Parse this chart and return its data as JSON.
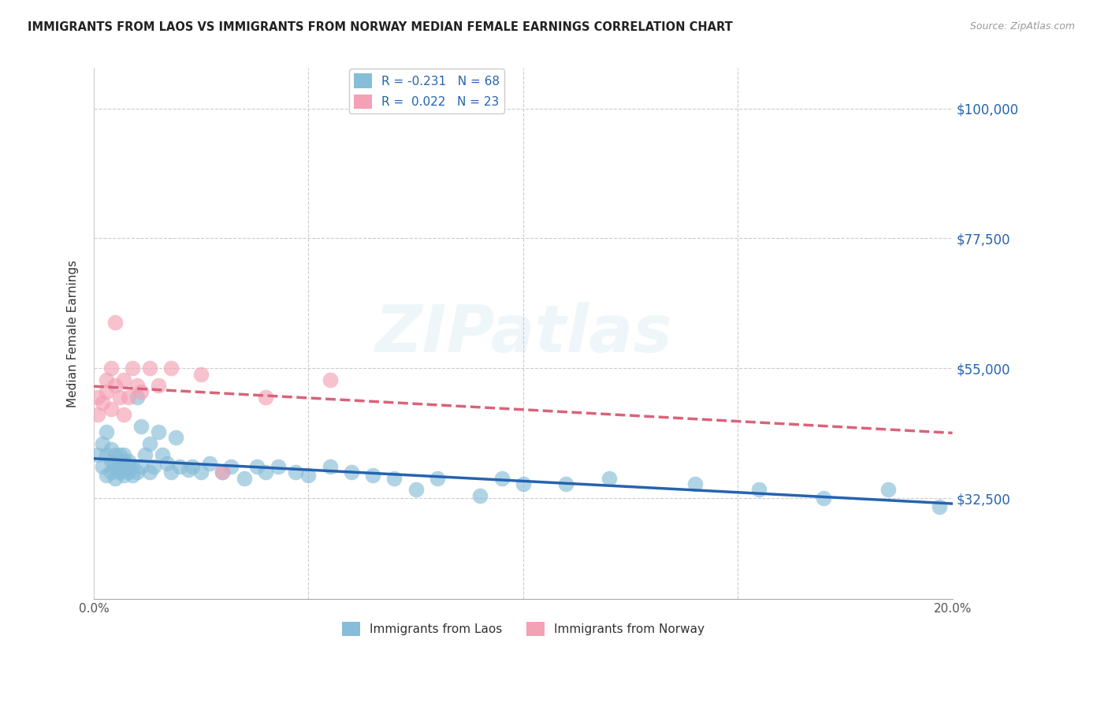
{
  "title": "IMMIGRANTS FROM LAOS VS IMMIGRANTS FROM NORWAY MEDIAN FEMALE EARNINGS CORRELATION CHART",
  "source": "Source: ZipAtlas.com",
  "ylabel": "Median Female Earnings",
  "xlim": [
    0.0,
    0.2
  ],
  "ylim": [
    15000,
    107000
  ],
  "yticks": [
    32500,
    55000,
    77500,
    100000
  ],
  "ytick_labels": [
    "$32,500",
    "$55,000",
    "$77,500",
    "$100,000"
  ],
  "xticks": [
    0.0,
    0.05,
    0.1,
    0.15,
    0.2
  ],
  "xtick_labels": [
    "0.0%",
    "",
    "",
    "",
    "20.0%"
  ],
  "legend_label1": "Immigrants from Laos",
  "legend_label2": "Immigrants from Norway",
  "R1": -0.231,
  "N1": 68,
  "R2": 0.022,
  "N2": 23,
  "color_laos": "#87bdd8",
  "color_norway": "#f4a0b5",
  "color_laos_line": "#2563b0",
  "color_norway_line": "#d9637a",
  "background_color": "#ffffff",
  "grid_color": "#cccccc",
  "title_color": "#222222",
  "axis_label_color": "#2563b0",
  "laos_x": [
    0.001,
    0.002,
    0.002,
    0.003,
    0.003,
    0.003,
    0.004,
    0.004,
    0.004,
    0.005,
    0.005,
    0.005,
    0.005,
    0.006,
    0.006,
    0.006,
    0.006,
    0.007,
    0.007,
    0.007,
    0.007,
    0.008,
    0.008,
    0.008,
    0.009,
    0.009,
    0.01,
    0.01,
    0.011,
    0.011,
    0.012,
    0.013,
    0.013,
    0.014,
    0.015,
    0.016,
    0.017,
    0.018,
    0.019,
    0.02,
    0.022,
    0.023,
    0.025,
    0.027,
    0.03,
    0.032,
    0.035,
    0.038,
    0.04,
    0.043,
    0.047,
    0.05,
    0.055,
    0.06,
    0.065,
    0.07,
    0.075,
    0.08,
    0.09,
    0.095,
    0.1,
    0.11,
    0.12,
    0.14,
    0.155,
    0.17,
    0.185,
    0.197
  ],
  "laos_y": [
    40000,
    38000,
    42000,
    36500,
    40000,
    44000,
    37000,
    39000,
    41000,
    38500,
    40000,
    36000,
    38000,
    37500,
    40000,
    38000,
    37000,
    39000,
    37500,
    36500,
    40000,
    38000,
    37000,
    39000,
    38000,
    36500,
    50000,
    37000,
    45000,
    38000,
    40000,
    37000,
    42000,
    38000,
    44000,
    40000,
    38500,
    37000,
    43000,
    38000,
    37500,
    38000,
    37000,
    38500,
    37000,
    38000,
    36000,
    38000,
    37000,
    38000,
    37000,
    36500,
    38000,
    37000,
    36500,
    36000,
    34000,
    36000,
    33000,
    36000,
    35000,
    35000,
    36000,
    35000,
    34000,
    32500,
    34000,
    31000
  ],
  "norway_x": [
    0.001,
    0.001,
    0.002,
    0.003,
    0.003,
    0.004,
    0.004,
    0.005,
    0.005,
    0.006,
    0.007,
    0.007,
    0.008,
    0.009,
    0.01,
    0.011,
    0.013,
    0.015,
    0.018,
    0.025,
    0.03,
    0.04,
    0.055
  ],
  "norway_y": [
    50000,
    47000,
    49000,
    53000,
    51000,
    55000,
    48000,
    52000,
    63000,
    50000,
    53000,
    47000,
    50000,
    55000,
    52000,
    51000,
    55000,
    52000,
    55000,
    54000,
    37000,
    50000,
    53000
  ]
}
